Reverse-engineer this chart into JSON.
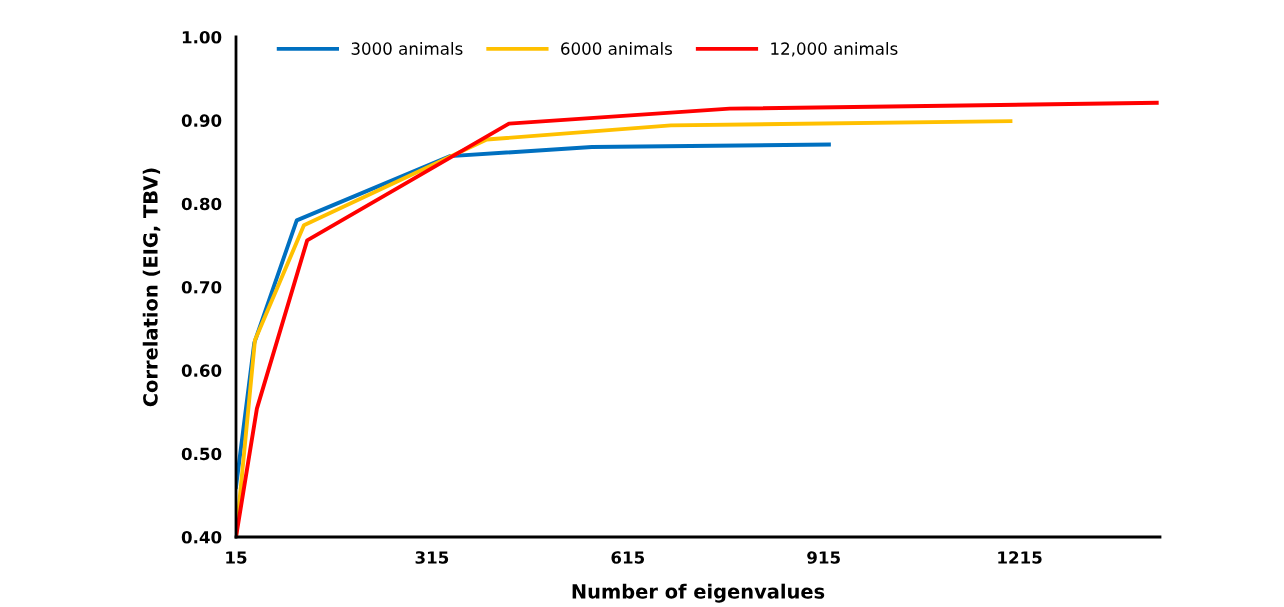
{
  "chart_data": {
    "type": "line",
    "xlabel": "Number of eigenvalues",
    "ylabel": "Correlation (EIG, TBV)",
    "xlim": [
      15,
      1430
    ],
    "xticks": [
      15,
      315,
      615,
      915,
      1215
    ],
    "ylim": [
      0.4,
      1.0
    ],
    "yticks": [
      {
        "value": 0.4,
        "label": "0.40"
      },
      {
        "value": 0.5,
        "label": "0.50"
      },
      {
        "value": 0.6,
        "label": "0.60"
      },
      {
        "value": 0.7,
        "label": "0.70"
      },
      {
        "value": 0.8,
        "label": "0.80"
      },
      {
        "value": 0.9,
        "label": "0.90"
      },
      {
        "value": 1.0,
        "label": "1.00"
      }
    ],
    "grid": false,
    "legend": "top left",
    "marker": "none",
    "line_style": "solid",
    "series": [
      {
        "name": "3000 animals",
        "color": "#0070c0",
        "x": [
          15,
          43,
          108,
          343,
          560,
          923
        ],
        "values": [
          0.46,
          0.633,
          0.78,
          0.857,
          0.868,
          0.871
        ]
      },
      {
        "name": "6000 animals",
        "color": "#ffc000",
        "x": [
          15,
          44,
          119,
          399,
          681,
          1201
        ],
        "values": [
          0.4,
          0.636,
          0.774,
          0.877,
          0.894,
          0.899
        ]
      },
      {
        "name": "12,000 animals",
        "color": "#ff0000",
        "x": [
          15,
          47,
          124,
          433,
          771,
          1425
        ],
        "values": [
          0.4,
          0.554,
          0.756,
          0.896,
          0.914,
          0.921
        ]
      }
    ]
  }
}
